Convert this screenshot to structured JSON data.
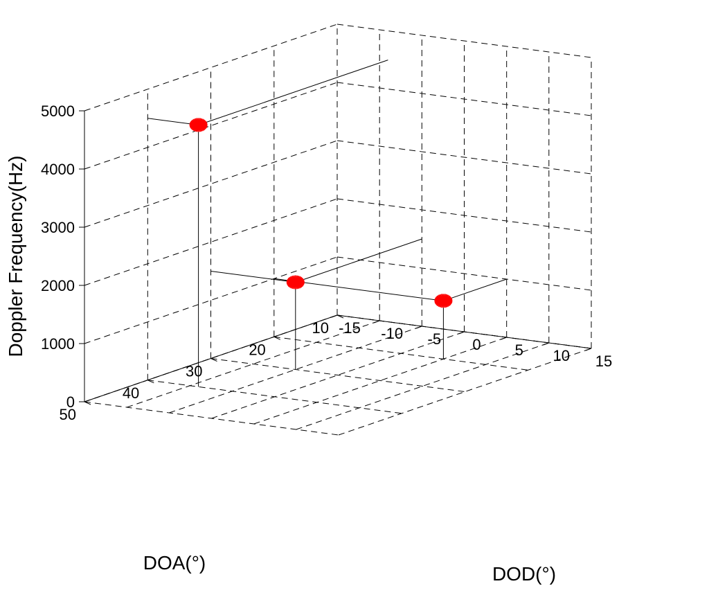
{
  "chart_data": {
    "type": "scatter3d",
    "title": "",
    "xlabel": "DOD(°)",
    "ylabel": "DOA(°)",
    "zlabel": "Doppler Frequency(Hz)",
    "xlim": [
      -15,
      15
    ],
    "ylim": [
      10,
      50
    ],
    "zlim": [
      0,
      5000
    ],
    "x_ticks": [
      -15,
      -10,
      -5,
      0,
      5,
      10,
      15
    ],
    "y_ticks": [
      10,
      20,
      30,
      40,
      50
    ],
    "z_ticks": [
      0,
      1000,
      2000,
      3000,
      4000,
      5000
    ],
    "x_tick_labels": [
      "-15",
      "-10",
      "-5",
      "0",
      "5",
      "10",
      "15"
    ],
    "y_tick_labels": [
      "10",
      "20",
      "30",
      "40",
      "50"
    ],
    "z_tick_labels": [
      "0",
      "1000",
      "2000",
      "3000",
      "4000",
      "5000"
    ],
    "grid": true,
    "points": [
      {
        "x": -9,
        "y": 40,
        "z": 4500
      },
      {
        "x": -5,
        "y": 30,
        "z": 1500
      },
      {
        "x": 5,
        "y": 20,
        "z": 1000
      }
    ],
    "marker_color": "#ff0000",
    "grid_color": "#000000",
    "background_color": "#ffffff"
  }
}
